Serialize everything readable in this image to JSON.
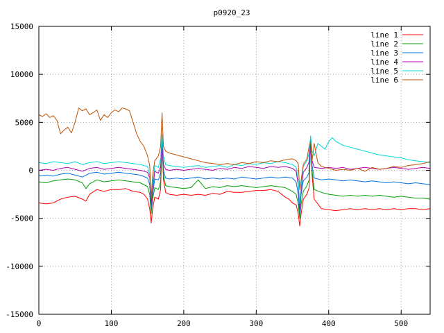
{
  "chart_data": {
    "type": "line",
    "title": "p0920_23",
    "xlabel": "",
    "ylabel": "",
    "xlim": [
      0,
      540
    ],
    "ylim": [
      -15000,
      15000
    ],
    "xticks": [
      0,
      100,
      200,
      300,
      400,
      500
    ],
    "yticks": [
      -15000,
      -10000,
      -5000,
      0,
      5000,
      10000,
      15000
    ],
    "grid": true,
    "legend_position": "top-right",
    "series": [
      {
        "name": "line 1",
        "color": "#ff0000",
        "x": [
          0,
          10,
          20,
          30,
          40,
          50,
          60,
          65,
          70,
          80,
          90,
          100,
          110,
          120,
          130,
          140,
          145,
          150,
          153,
          155,
          157,
          160,
          165,
          168,
          170,
          172,
          175,
          180,
          190,
          200,
          210,
          220,
          230,
          240,
          250,
          260,
          270,
          280,
          290,
          300,
          310,
          320,
          330,
          340,
          345,
          350,
          355,
          358,
          360,
          362,
          365,
          370,
          373,
          375,
          377,
          380,
          385,
          390,
          400,
          410,
          420,
          430,
          440,
          450,
          460,
          470,
          480,
          490,
          500,
          510,
          520,
          530,
          540
        ],
        "y": [
          -3400,
          -3500,
          -3400,
          -3000,
          -2800,
          -2700,
          -3000,
          -3200,
          -2500,
          -2000,
          -2200,
          -2000,
          -2000,
          -1900,
          -2200,
          -2300,
          -2500,
          -3000,
          -4000,
          -5500,
          -4000,
          -2800,
          -3000,
          -2000,
          3000,
          -1000,
          -2300,
          -2500,
          -2600,
          -2500,
          -2600,
          -2500,
          -2600,
          -2400,
          -2500,
          -2200,
          -2300,
          -2300,
          -2200,
          -2100,
          -2100,
          -2000,
          -2200,
          -2800,
          -3000,
          -3400,
          -3600,
          -4500,
          -5800,
          -4500,
          -3000,
          -2500,
          -1800,
          2800,
          -500,
          -3000,
          -3500,
          -4000,
          -4100,
          -4200,
          -4100,
          -4000,
          -4100,
          -4000,
          -4100,
          -4000,
          -4100,
          -4000,
          -4100,
          -4000,
          -4000,
          -4100,
          -4000
        ]
      },
      {
        "name": "line 2",
        "color": "#00a000",
        "x": [
          0,
          10,
          20,
          30,
          40,
          50,
          60,
          65,
          70,
          80,
          90,
          100,
          110,
          120,
          130,
          140,
          150,
          153,
          155,
          157,
          160,
          165,
          168,
          170,
          172,
          175,
          180,
          190,
          200,
          210,
          220,
          230,
          240,
          250,
          260,
          270,
          280,
          290,
          300,
          310,
          320,
          330,
          340,
          350,
          355,
          358,
          360,
          362,
          365,
          370,
          373,
          375,
          377,
          380,
          390,
          400,
          410,
          420,
          430,
          440,
          450,
          460,
          470,
          480,
          490,
          500,
          510,
          520,
          530,
          540
        ],
        "y": [
          -1200,
          -1300,
          -1100,
          -1000,
          -900,
          -1000,
          -1300,
          -1900,
          -1400,
          -1000,
          -1200,
          -1100,
          -1000,
          -1100,
          -1200,
          -1300,
          -1700,
          -2500,
          -4500,
          -3000,
          -1800,
          -2000,
          -1200,
          3200,
          -500,
          -1600,
          -1700,
          -1800,
          -1900,
          -1800,
          -1000,
          -1900,
          -1700,
          -1800,
          -1600,
          -1700,
          -1600,
          -1700,
          -1800,
          -1700,
          -1600,
          -1700,
          -1800,
          -2200,
          -2500,
          -3500,
          -5000,
          -3500,
          -2200,
          -1600,
          -1000,
          3000,
          0,
          -2000,
          -2300,
          -2500,
          -2600,
          -2700,
          -2600,
          -2700,
          -2600,
          -2700,
          -2600,
          -2700,
          -2800,
          -2700,
          -2800,
          -2900,
          -2900,
          -3000
        ]
      },
      {
        "name": "line 3",
        "color": "#0070e0",
        "x": [
          0,
          10,
          20,
          30,
          40,
          50,
          60,
          70,
          80,
          90,
          100,
          110,
          120,
          130,
          140,
          150,
          153,
          155,
          157,
          160,
          165,
          168,
          170,
          172,
          175,
          180,
          190,
          200,
          210,
          220,
          230,
          240,
          250,
          260,
          270,
          280,
          290,
          300,
          310,
          320,
          330,
          340,
          350,
          355,
          358,
          360,
          362,
          365,
          370,
          373,
          375,
          377,
          380,
          390,
          400,
          410,
          420,
          430,
          440,
          450,
          460,
          470,
          480,
          490,
          500,
          510,
          520,
          530,
          540
        ],
        "y": [
          -600,
          -500,
          -600,
          -400,
          -300,
          -500,
          -700,
          -300,
          -200,
          -400,
          -300,
          -200,
          -300,
          -400,
          -500,
          -800,
          -1500,
          -4000,
          -2500,
          -900,
          -1000,
          -300,
          3500,
          0,
          -800,
          -900,
          -800,
          -900,
          -800,
          -700,
          -900,
          -800,
          -900,
          -800,
          -900,
          -700,
          -800,
          -900,
          -800,
          -700,
          -800,
          -700,
          -800,
          -1200,
          -2500,
          -4500,
          -2500,
          -1100,
          -700,
          -200,
          3300,
          500,
          -800,
          -1000,
          -900,
          -1000,
          -1100,
          -1000,
          -1100,
          -1200,
          -1100,
          -1200,
          -1300,
          -1200,
          -1300,
          -1400,
          -1300,
          -1400,
          -1500
        ]
      },
      {
        "name": "line 4",
        "color": "#b000b0",
        "x": [
          0,
          10,
          20,
          30,
          40,
          50,
          60,
          70,
          80,
          90,
          100,
          110,
          120,
          130,
          140,
          150,
          153,
          155,
          157,
          160,
          165,
          168,
          170,
          172,
          175,
          180,
          190,
          200,
          210,
          220,
          230,
          240,
          250,
          260,
          270,
          280,
          290,
          300,
          310,
          320,
          330,
          340,
          350,
          355,
          358,
          360,
          362,
          365,
          370,
          373,
          375,
          377,
          380,
          390,
          400,
          410,
          420,
          430,
          440,
          450,
          460,
          470,
          480,
          490,
          500,
          510,
          520,
          530,
          540
        ],
        "y": [
          0,
          100,
          0,
          200,
          300,
          100,
          -100,
          200,
          300,
          100,
          200,
          300,
          200,
          100,
          0,
          -200,
          -800,
          -3500,
          -2000,
          -100,
          -300,
          400,
          3000,
          600,
          100,
          0,
          100,
          0,
          100,
          200,
          100,
          0,
          200,
          100,
          300,
          200,
          400,
          300,
          200,
          400,
          300,
          400,
          200,
          -100,
          -1500,
          -4000,
          -2000,
          -200,
          300,
          900,
          3200,
          1000,
          300,
          200,
          300,
          200,
          300,
          100,
          200,
          300,
          200,
          100,
          200,
          300,
          200,
          100,
          200,
          300,
          200
        ]
      },
      {
        "name": "line 5",
        "color": "#00d8d8",
        "x": [
          0,
          10,
          20,
          30,
          40,
          50,
          60,
          70,
          80,
          90,
          100,
          110,
          120,
          130,
          140,
          150,
          153,
          155,
          157,
          160,
          165,
          168,
          170,
          172,
          175,
          180,
          190,
          200,
          210,
          220,
          230,
          240,
          250,
          260,
          270,
          280,
          290,
          300,
          310,
          320,
          330,
          340,
          350,
          355,
          358,
          360,
          362,
          365,
          370,
          373,
          375,
          377,
          380,
          385,
          390,
          395,
          400,
          405,
          410,
          420,
          430,
          440,
          450,
          460,
          470,
          480,
          490,
          500,
          510,
          520,
          530,
          540
        ],
        "y": [
          800,
          700,
          900,
          800,
          700,
          900,
          600,
          800,
          900,
          700,
          800,
          900,
          800,
          700,
          600,
          400,
          -500,
          -3000,
          -1500,
          500,
          300,
          1200,
          3800,
          1500,
          600,
          500,
          400,
          300,
          400,
          500,
          300,
          400,
          500,
          300,
          600,
          500,
          700,
          600,
          800,
          700,
          900,
          800,
          600,
          300,
          -1000,
          -3500,
          -1500,
          400,
          1000,
          1800,
          3600,
          2000,
          1500,
          2800,
          2500,
          2200,
          3000,
          3400,
          3000,
          2600,
          2400,
          2200,
          2000,
          1800,
          1600,
          1500,
          1400,
          1300,
          1100,
          1000,
          900,
          800
        ]
      },
      {
        "name": "line 6",
        "color": "#c05000",
        "x": [
          0,
          5,
          10,
          15,
          20,
          25,
          30,
          35,
          40,
          45,
          50,
          55,
          60,
          65,
          70,
          75,
          80,
          85,
          90,
          95,
          100,
          105,
          110,
          115,
          120,
          125,
          130,
          135,
          140,
          145,
          150,
          153,
          155,
          157,
          160,
          165,
          168,
          170,
          172,
          175,
          180,
          190,
          200,
          210,
          220,
          230,
          240,
          250,
          260,
          270,
          280,
          290,
          300,
          310,
          320,
          330,
          340,
          350,
          355,
          358,
          360,
          362,
          365,
          370,
          373,
          375,
          377,
          380,
          385,
          390,
          400,
          410,
          420,
          430,
          440,
          450,
          460,
          470,
          480,
          490,
          500,
          510,
          520,
          530,
          540
        ],
        "y": [
          5800,
          5600,
          5900,
          5500,
          5700,
          5200,
          3800,
          4200,
          4500,
          3900,
          5000,
          6500,
          6200,
          6400,
          5800,
          6000,
          6300,
          5200,
          5800,
          5500,
          6000,
          6300,
          6100,
          6500,
          6400,
          6200,
          5000,
          3800,
          3000,
          2500,
          1500,
          500,
          -3000,
          -500,
          1000,
          1500,
          2500,
          6000,
          2500,
          2000,
          1800,
          1600,
          1400,
          1200,
          1000,
          800,
          700,
          600,
          700,
          600,
          800,
          700,
          900,
          800,
          1000,
          900,
          1100,
          1200,
          1000,
          700,
          -2000,
          -1000,
          600,
          1200,
          2500,
          3000,
          1000,
          2800,
          800,
          400,
          200,
          0,
          100,
          0,
          200,
          -100,
          300,
          100,
          200,
          400,
          300,
          500,
          600,
          700,
          900
        ]
      }
    ]
  }
}
